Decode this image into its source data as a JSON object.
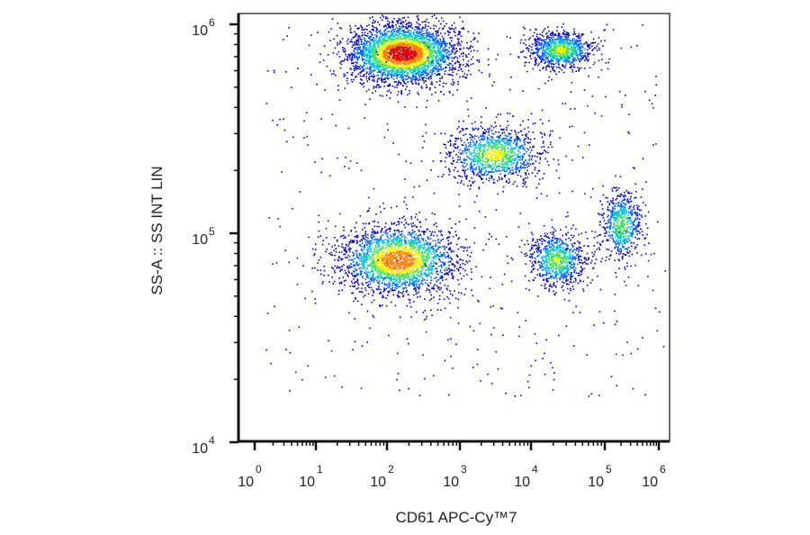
{
  "chart_data": {
    "type": "scatter",
    "title": "",
    "xlabel": "CD61 APC-Cy™7",
    "ylabel": "SS-A :: SS INT LIN",
    "x_scale": "biexponential",
    "y_scale": "log",
    "x_ticks": [
      {
        "base": "10",
        "exp": "0"
      },
      {
        "base": "10",
        "exp": "1"
      },
      {
        "base": "10",
        "exp": "2"
      },
      {
        "base": "10",
        "exp": "3"
      },
      {
        "base": "10",
        "exp": "4"
      },
      {
        "base": "10",
        "exp": "5"
      },
      {
        "base": "10",
        "exp": "6"
      }
    ],
    "y_ticks": [
      {
        "base": "10",
        "exp": "4"
      },
      {
        "base": "10",
        "exp": "5"
      },
      {
        "base": "10",
        "exp": "6"
      }
    ],
    "ylim": [
      10000,
      1250000
    ],
    "grid": false,
    "legend": "none",
    "colormap": [
      "#0000c8",
      "#0060ff",
      "#00c0e0",
      "#40e060",
      "#f0f000",
      "#ff8000",
      "#e00000"
    ],
    "populations": [
      {
        "x_center": 160,
        "y_center": 730000,
        "x_spread_decades": 0.7,
        "y_spread_decades": 0.13,
        "relative_density": 1.0
      },
      {
        "x_center": 140,
        "y_center": 75000,
        "x_spread_decades": 0.75,
        "y_spread_decades": 0.15,
        "relative_density": 0.75
      },
      {
        "x_center": 3000,
        "y_center": 240000,
        "x_spread_decades": 0.6,
        "y_spread_decades": 0.12,
        "relative_density": 0.35
      },
      {
        "x_center": 25000,
        "y_center": 760000,
        "x_spread_decades": 0.4,
        "y_spread_decades": 0.08,
        "relative_density": 0.3
      },
      {
        "x_center": 22000,
        "y_center": 75000,
        "x_spread_decades": 0.35,
        "y_spread_decades": 0.12,
        "relative_density": 0.25
      },
      {
        "x_center": 200000,
        "y_center": 110000,
        "x_spread_decades": 0.35,
        "y_spread_decades": 0.15,
        "relative_density": 0.2
      }
    ]
  }
}
